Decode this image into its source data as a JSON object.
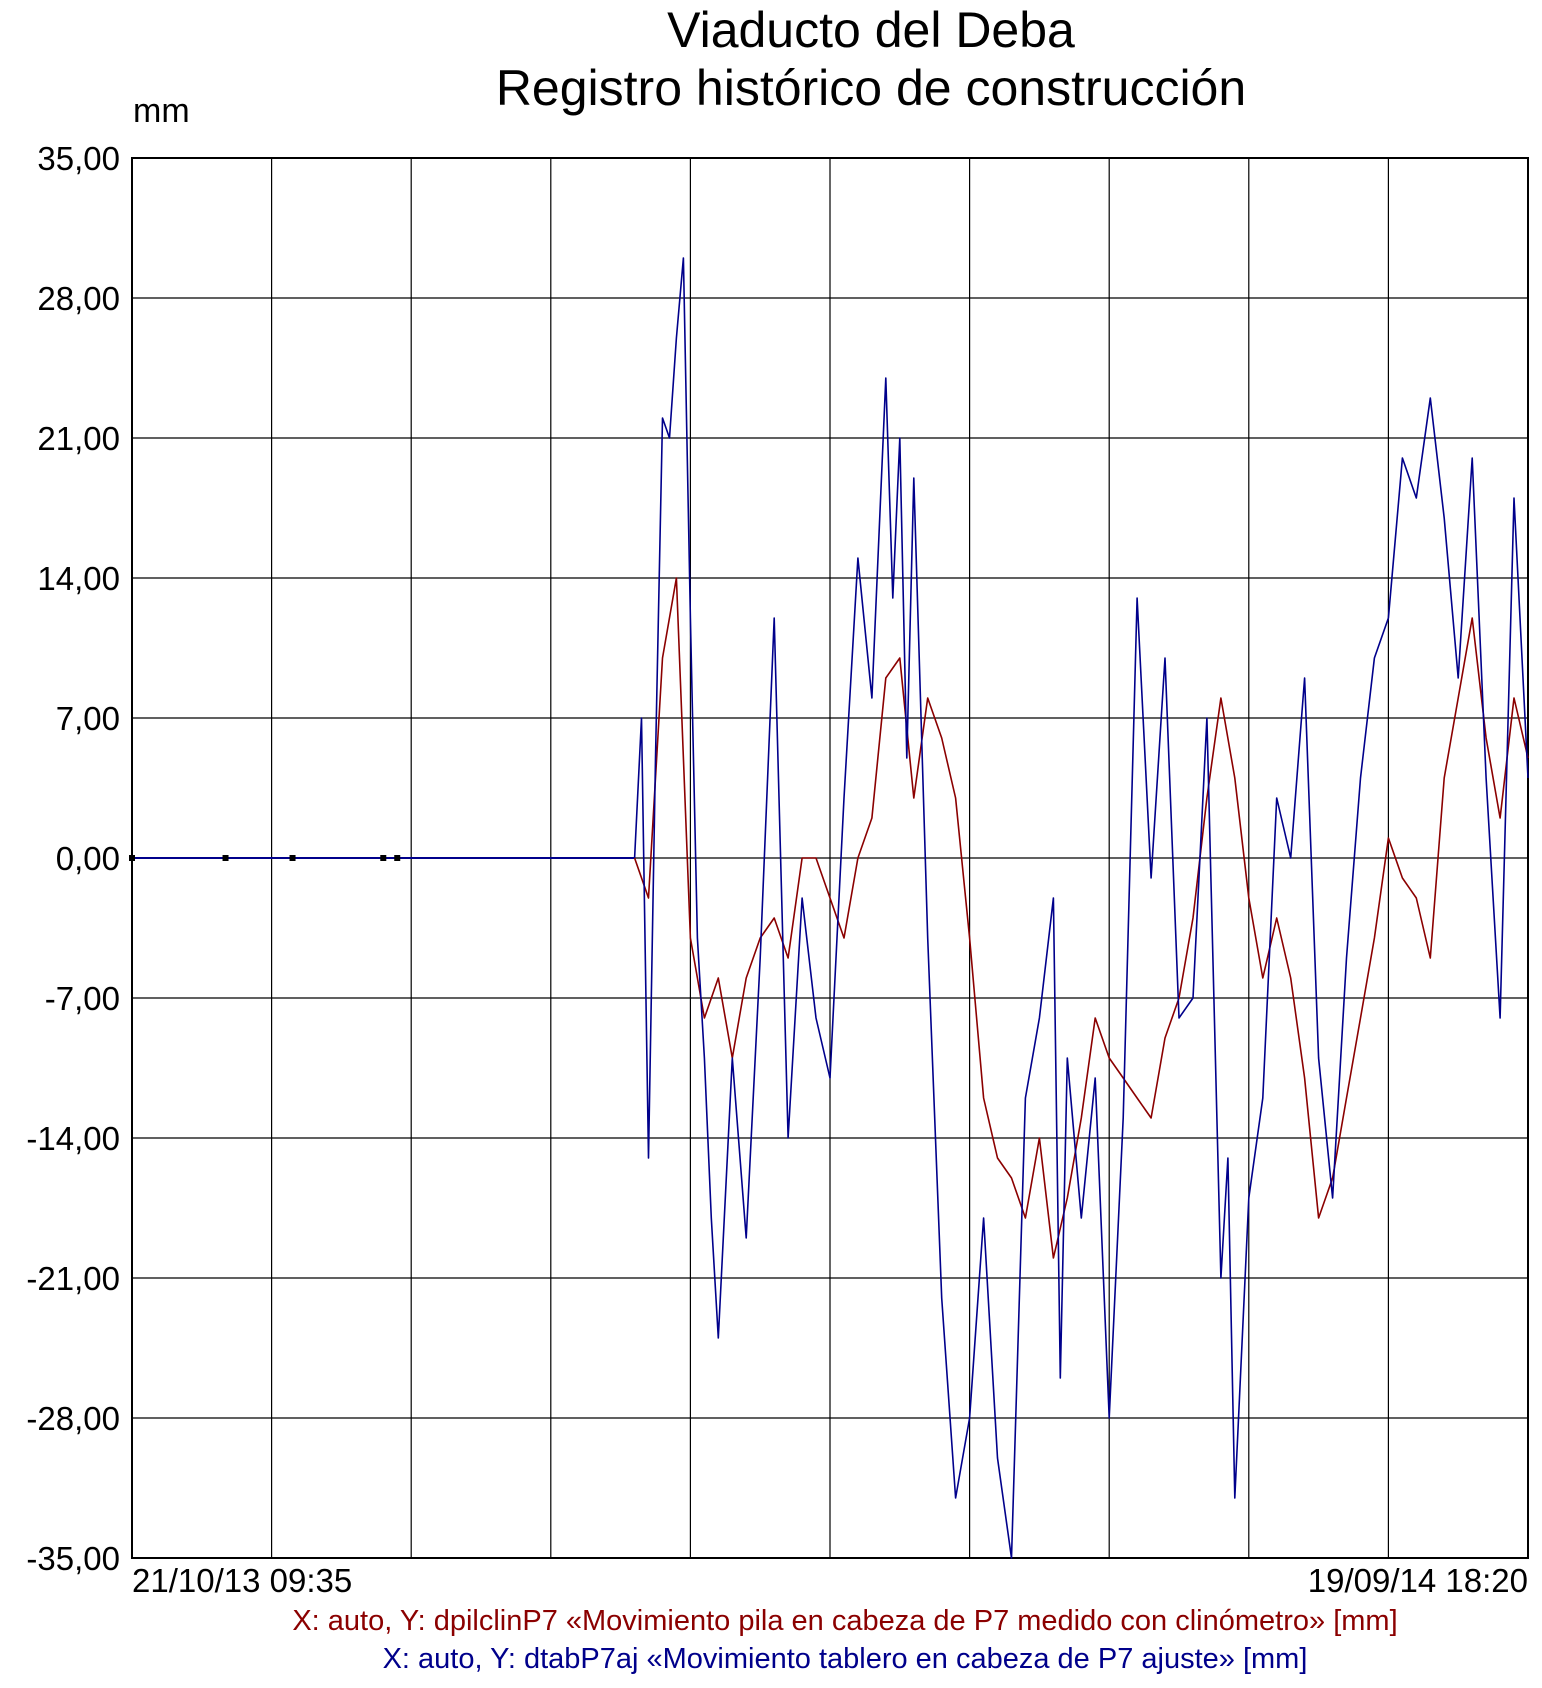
{
  "chart_data": {
    "type": "line",
    "title": "Viaducto del Deba",
    "subtitle": "Registro histórico de construcción",
    "ylabel": "mm",
    "ylim": [
      -35,
      35
    ],
    "yticks": [
      "35,00",
      "28,00",
      "21,00",
      "14,00",
      "7,00",
      "0,00",
      "-7,00",
      "-14,00",
      "-21,00",
      "-28,00",
      "-35,00"
    ],
    "ytick_values": [
      35,
      28,
      21,
      14,
      7,
      0,
      -7,
      -14,
      -21,
      -28,
      -35
    ],
    "x_start_label": "21/10/13 09:35",
    "x_end_label": "19/09/14 18:20",
    "x_divisions": 10,
    "grid": true,
    "series": [
      {
        "name": "X: auto,  Y: dpilclinP7 «Movimiento pila en cabeza de P7 medido con clinómetro» [mm]",
        "color": "#8b0000",
        "x": [
          0.36,
          0.37,
          0.38,
          0.39,
          0.4,
          0.41,
          0.42,
          0.43,
          0.44,
          0.45,
          0.46,
          0.47,
          0.48,
          0.49,
          0.5,
          0.51,
          0.52,
          0.53,
          0.54,
          0.55,
          0.56,
          0.57,
          0.58,
          0.59,
          0.6,
          0.61,
          0.62,
          0.63,
          0.64,
          0.65,
          0.66,
          0.67,
          0.68,
          0.69,
          0.7,
          0.71,
          0.72,
          0.73,
          0.74,
          0.75,
          0.76,
          0.77,
          0.78,
          0.79,
          0.8,
          0.81,
          0.82,
          0.83,
          0.84,
          0.85,
          0.86,
          0.87,
          0.88,
          0.89,
          0.9,
          0.91,
          0.92,
          0.93,
          0.94,
          0.95,
          0.96,
          0.97,
          0.98,
          0.99,
          1.0
        ],
        "values": [
          0,
          -2,
          10,
          14,
          -4,
          -8,
          -6,
          -10,
          -6,
          -4,
          -3,
          -5,
          0,
          0,
          -2,
          -4,
          0,
          2,
          9,
          10,
          3,
          8,
          6,
          3,
          -4,
          -12,
          -15,
          -16,
          -18,
          -14,
          -20,
          -17,
          -13,
          -8,
          -10,
          -11,
          -12,
          -13,
          -9,
          -7,
          -3,
          3,
          8,
          4,
          -2,
          -6,
          -3,
          -6,
          -11,
          -18,
          -16,
          -12,
          -8,
          -4,
          1,
          -1,
          -2,
          -5,
          4,
          8,
          12,
          6,
          2,
          8,
          5
        ]
      },
      {
        "name": "X: auto,  Y: dtabP7aj «Movimiento tablero en cabeza de P7 ajuste» [mm]",
        "color": "#00008b",
        "x": [
          0.36,
          0.365,
          0.37,
          0.375,
          0.38,
          0.385,
          0.39,
          0.395,
          0.4,
          0.405,
          0.41,
          0.415,
          0.42,
          0.43,
          0.44,
          0.45,
          0.46,
          0.47,
          0.48,
          0.49,
          0.5,
          0.51,
          0.52,
          0.53,
          0.54,
          0.545,
          0.55,
          0.555,
          0.56,
          0.57,
          0.58,
          0.59,
          0.6,
          0.61,
          0.62,
          0.63,
          0.64,
          0.65,
          0.66,
          0.665,
          0.67,
          0.68,
          0.69,
          0.7,
          0.71,
          0.72,
          0.73,
          0.74,
          0.75,
          0.76,
          0.77,
          0.78,
          0.785,
          0.79,
          0.8,
          0.81,
          0.82,
          0.83,
          0.84,
          0.85,
          0.86,
          0.87,
          0.88,
          0.89,
          0.9,
          0.91,
          0.92,
          0.93,
          0.94,
          0.95,
          0.96,
          0.97,
          0.98,
          0.99,
          1.0
        ],
        "values": [
          0,
          7,
          -15,
          5,
          22,
          21,
          26,
          30,
          12,
          -4,
          -10,
          -18,
          -24,
          -10,
          -19,
          -5,
          12,
          -14,
          -2,
          -8,
          -11,
          3,
          15,
          8,
          24,
          13,
          21,
          5,
          19,
          -4,
          -22,
          -32,
          -28,
          -18,
          -30,
          -35,
          -12,
          -8,
          -2,
          -26,
          -10,
          -18,
          -11,
          -28,
          -13,
          13,
          -1,
          10,
          -8,
          -7,
          7,
          -21,
          -15,
          -32,
          -17,
          -12,
          3,
          0,
          9,
          -10,
          -17,
          -5,
          4,
          10,
          12,
          20,
          18,
          23,
          17,
          9,
          20,
          4,
          -8,
          18,
          4
        ]
      }
    ]
  }
}
